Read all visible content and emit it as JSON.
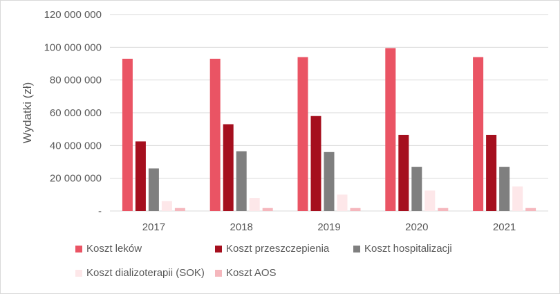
{
  "chart_data": {
    "type": "bar",
    "categories": [
      "2017",
      "2018",
      "2019",
      "2020",
      "2021"
    ],
    "ylabel": "Wydatki (zł)",
    "xlabel": "",
    "ylim": [
      0,
      120000000
    ],
    "yticks": [
      0,
      20000000,
      40000000,
      60000000,
      80000000,
      100000000,
      120000000
    ],
    "ytick_labels": [
      "-",
      "20 000 000",
      "40 000 000",
      "60 000 000",
      "80 000 000",
      "100 000 000",
      "120 000 000"
    ],
    "grid": true,
    "legend_position": "bottom",
    "series": [
      {
        "name": "Koszt leków",
        "color": "#ea5464",
        "values": [
          93000000,
          93000000,
          94000000,
          99500000,
          94000000
        ]
      },
      {
        "name": "Koszt przeszczepienia",
        "color": "#a50f1e",
        "values": [
          42500000,
          53000000,
          58000000,
          46500000,
          46500000
        ]
      },
      {
        "name": "Koszt hospitalizacji",
        "color": "#7f7f7f",
        "values": [
          26000000,
          36500000,
          36000000,
          27000000,
          27000000
        ]
      },
      {
        "name": "Koszt dializoterapii (SOK)",
        "color": "#fde7e9",
        "values": [
          6000000,
          8000000,
          10000000,
          12500000,
          15000000
        ]
      },
      {
        "name": "Koszt AOS",
        "color": "#f5b7bd",
        "values": [
          1800000,
          1800000,
          1800000,
          1800000,
          1800000
        ]
      }
    ]
  }
}
